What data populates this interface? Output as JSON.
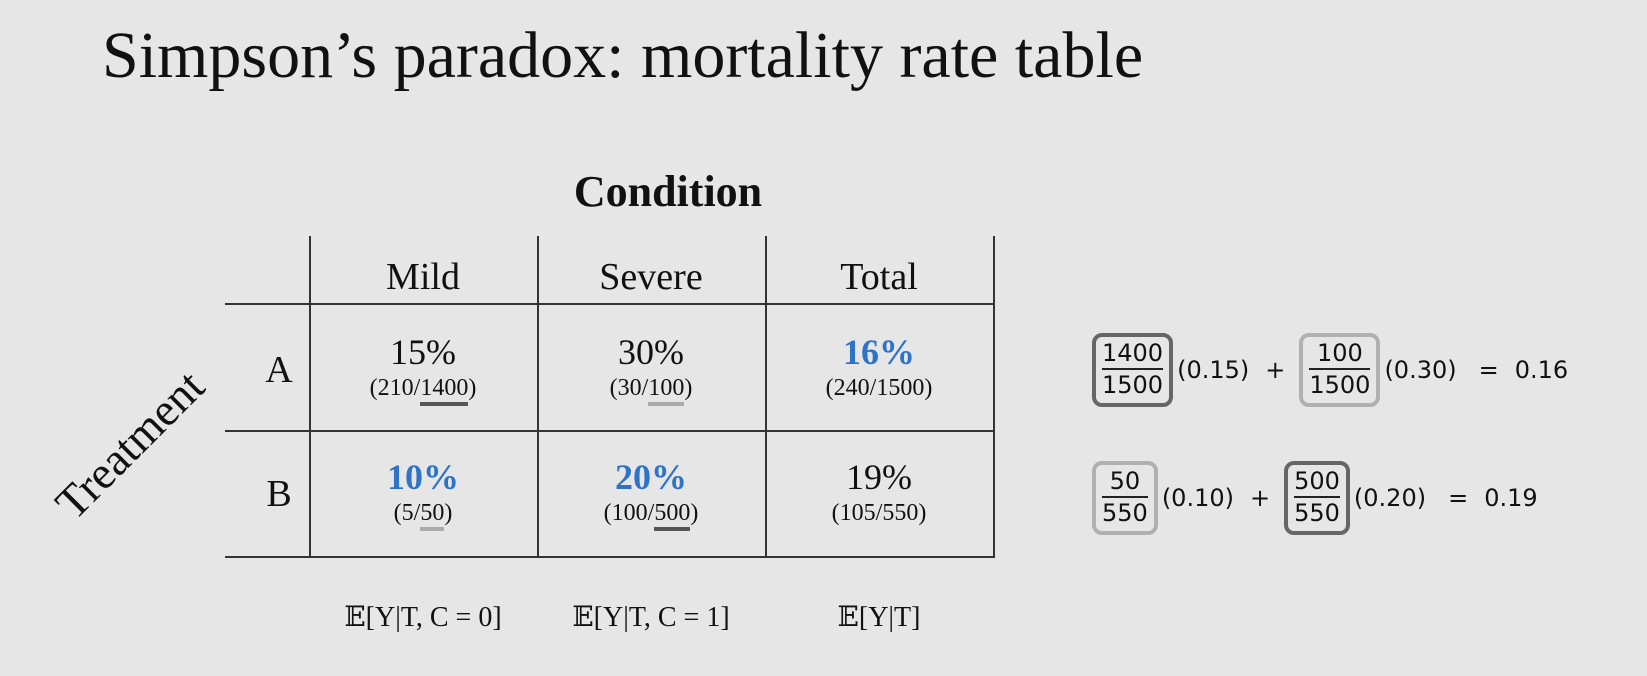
{
  "title": "Simpson’s paradox: mortality rate table",
  "table": {
    "column_group_label": "Condition",
    "row_group_label": "Treatment",
    "columns": [
      "Mild",
      "Severe",
      "Total"
    ],
    "rows": [
      {
        "label": "A",
        "cells": [
          {
            "rate": "15%",
            "frac_pre": "(210/",
            "frac_den": "1400",
            "frac_post": ")",
            "highlight": false
          },
          {
            "rate": "30%",
            "frac_pre": "(30/",
            "frac_den": "100",
            "frac_post": ")",
            "highlight": false
          },
          {
            "rate": "16%",
            "frac_pre": "(240/1500)",
            "frac_den": "",
            "frac_post": "",
            "highlight": true
          }
        ]
      },
      {
        "label": "B",
        "cells": [
          {
            "rate": "10%",
            "frac_pre": "(5/",
            "frac_den": "50",
            "frac_post": ")",
            "highlight": true
          },
          {
            "rate": "20%",
            "frac_pre": "(100/",
            "frac_den": "500",
            "frac_post": ")",
            "highlight": true
          },
          {
            "rate": "19%",
            "frac_pre": "(105/550)",
            "frac_den": "",
            "frac_post": "",
            "highlight": false
          }
        ]
      }
    ],
    "expectations": [
      "𝔼[Y|T, C = 0]",
      "𝔼[Y|T, C = 1]",
      "𝔼[Y|T]"
    ]
  },
  "equations": [
    {
      "w1_num": "1400",
      "w1_den": "1500",
      "r1": "(0.15)",
      "plus": "+",
      "w2_num": "100",
      "w2_den": "1500",
      "r2": "(0.30)",
      "equals": "=",
      "result": "0.16"
    },
    {
      "w1_num": "50",
      "w1_den": "550",
      "r1": "(0.10)",
      "plus": "+",
      "w2_num": "500",
      "w2_den": "550",
      "r2": "(0.20)",
      "equals": "=",
      "result": "0.19"
    }
  ],
  "colors": {
    "highlight": "#2f73c9",
    "background": "#e6e6e6"
  }
}
